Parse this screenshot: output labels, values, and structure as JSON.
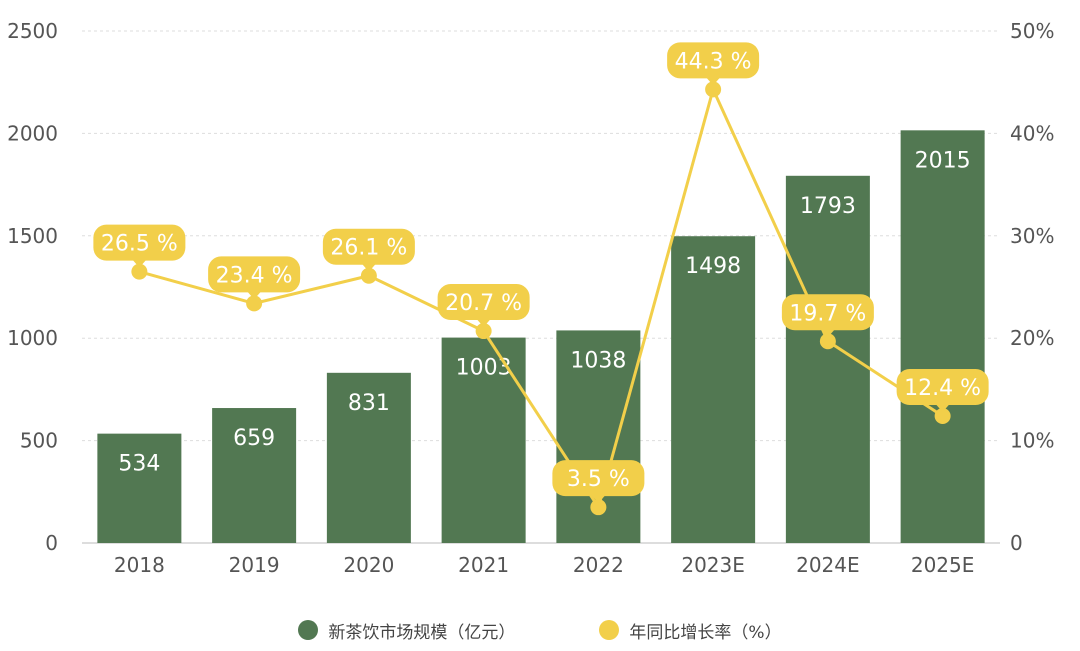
{
  "chart_data": {
    "type": "bar",
    "categories": [
      "2018",
      "2019",
      "2020",
      "2021",
      "2022",
      "2023E",
      "2024E",
      "2025E"
    ],
    "series": [
      {
        "name": "新茶饮市场规模（亿元）",
        "type": "bar",
        "axis": "left",
        "values": [
          534,
          659,
          831,
          1003,
          1038,
          1498,
          1793,
          2015
        ],
        "labels": [
          "534",
          "659",
          "831",
          "1003",
          "1038",
          "1498",
          "1793",
          "2015"
        ]
      },
      {
        "name": "年同比增长率（%）",
        "type": "line",
        "axis": "right",
        "values": [
          26.5,
          23.4,
          26.1,
          20.7,
          3.5,
          44.3,
          19.7,
          12.4
        ],
        "labels": [
          "26.5 %",
          "23.4 %",
          "26.1 %",
          "20.7 %",
          "3.5 %",
          "44.3 %",
          "19.7 %",
          "12.4 %"
        ]
      }
    ],
    "y_left": {
      "ylim": [
        0,
        2500
      ],
      "ticks": [
        "0",
        "500",
        "1000",
        "1500",
        "2000",
        "2500"
      ]
    },
    "y_right": {
      "ylim": [
        0,
        50
      ],
      "ticks": [
        "0",
        "10%",
        "20%",
        "30%",
        "40%",
        "50%"
      ]
    },
    "grid": true,
    "legend": "bottom-center",
    "colors": {
      "bar": "#527852",
      "line": "#f2cf4a",
      "grid": "#dddddd",
      "axis": "#bbbbbb"
    }
  }
}
